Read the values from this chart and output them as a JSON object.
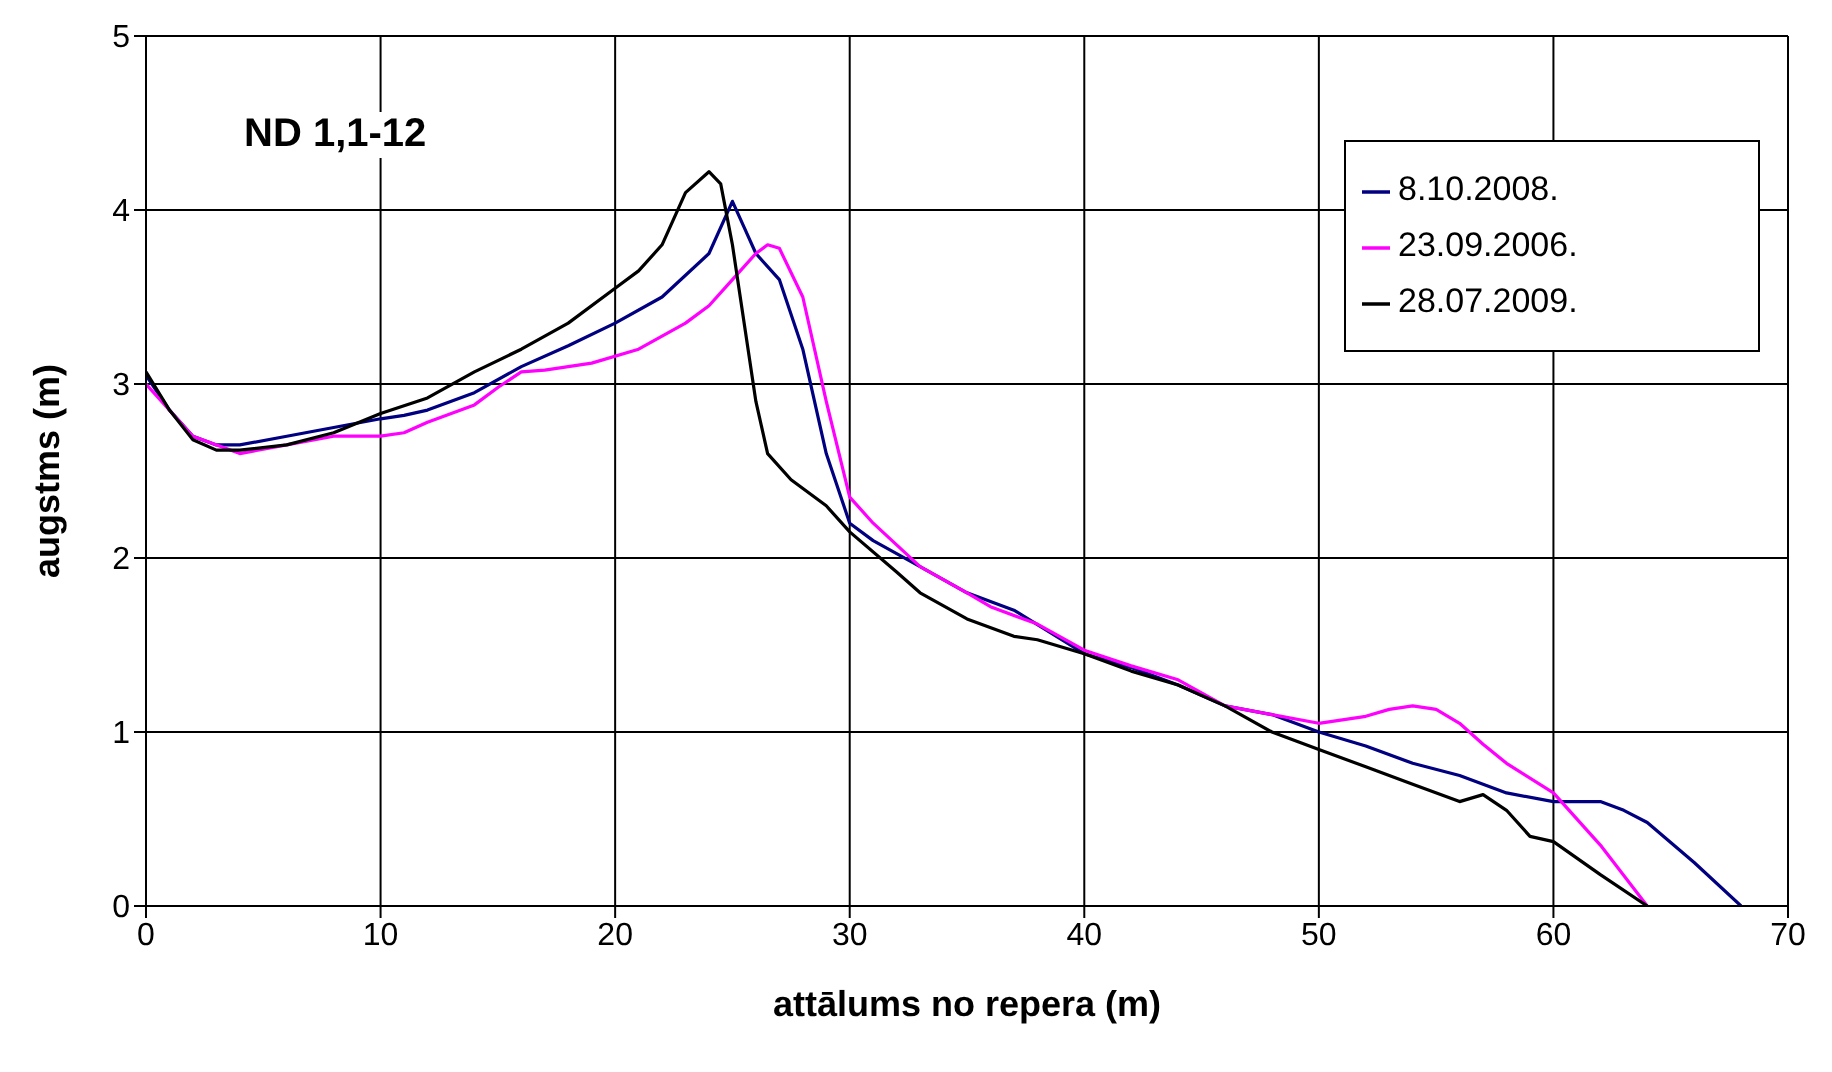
{
  "chart_data": {
    "type": "line",
    "xlabel": "attālums no repera (m)",
    "ylabel": "augstms (m)",
    "annotations": [
      "ND 1,1-12"
    ],
    "xlim": [
      0,
      70
    ],
    "xticks": [
      0,
      10,
      20,
      30,
      40,
      50,
      60,
      70
    ],
    "ylim": [
      0,
      5
    ],
    "yticks": [
      0,
      1,
      2,
      3,
      4,
      5
    ],
    "grid": true,
    "legend": "top right",
    "marker": "none",
    "line_style": "solid",
    "series": [
      {
        "name": "8.10.2008.",
        "color": "#000080",
        "x": [
          0,
          1,
          2,
          3,
          4,
          6,
          8,
          10,
          11,
          12,
          14,
          16,
          18,
          20,
          22,
          24,
          25,
          25.5,
          26,
          27,
          28,
          29,
          30,
          31,
          33,
          35,
          37,
          40,
          42,
          44,
          46,
          48,
          50,
          52,
          54,
          56,
          58,
          60,
          62,
          63,
          64,
          66,
          68
        ],
        "values": [
          3.05,
          2.85,
          2.7,
          2.65,
          2.65,
          2.7,
          2.75,
          2.8,
          2.82,
          2.85,
          2.95,
          3.1,
          3.22,
          3.35,
          3.5,
          3.75,
          4.05,
          3.9,
          3.75,
          3.6,
          3.2,
          2.6,
          2.2,
          2.1,
          1.95,
          1.8,
          1.7,
          1.45,
          1.37,
          1.27,
          1.15,
          1.1,
          1.0,
          0.92,
          0.82,
          0.75,
          0.65,
          0.6,
          0.6,
          0.55,
          0.48,
          0.25,
          0
        ]
      },
      {
        "name": "23.09.2006.",
        "color": "#ff00ff",
        "x": [
          0,
          2,
          4,
          6,
          8,
          10,
          11,
          12,
          14,
          15,
          16,
          17,
          19,
          21,
          23,
          24,
          25,
          26,
          26.5,
          27,
          28,
          29,
          30,
          31,
          33,
          35,
          36,
          38,
          40,
          42,
          44,
          46,
          48,
          50,
          52,
          53,
          54,
          55,
          56,
          57,
          58,
          60,
          62,
          64
        ],
        "values": [
          3.0,
          2.7,
          2.6,
          2.65,
          2.7,
          2.7,
          2.72,
          2.78,
          2.88,
          2.98,
          3.07,
          3.08,
          3.12,
          3.2,
          3.35,
          3.45,
          3.6,
          3.75,
          3.8,
          3.78,
          3.5,
          2.9,
          2.35,
          2.2,
          1.95,
          1.8,
          1.72,
          1.62,
          1.47,
          1.38,
          1.3,
          1.15,
          1.1,
          1.05,
          1.09,
          1.13,
          1.15,
          1.13,
          1.05,
          0.93,
          0.82,
          0.65,
          0.35,
          0
        ]
      },
      {
        "name": "28.07.2009.",
        "color": "#000000",
        "x": [
          0,
          1,
          2,
          3,
          4,
          6,
          8,
          10,
          12,
          14,
          16,
          18,
          20,
          21,
          22,
          23,
          24,
          24.5,
          25,
          26,
          26.5,
          27.5,
          29,
          30,
          32,
          33,
          35,
          37,
          38,
          40,
          42,
          44,
          46,
          48,
          50,
          52,
          54,
          56,
          57,
          58,
          59,
          60,
          62,
          64
        ],
        "values": [
          3.07,
          2.85,
          2.68,
          2.62,
          2.62,
          2.65,
          2.72,
          2.83,
          2.92,
          3.07,
          3.2,
          3.35,
          3.55,
          3.65,
          3.8,
          4.1,
          4.22,
          4.15,
          3.8,
          2.9,
          2.6,
          2.45,
          2.3,
          2.15,
          1.92,
          1.8,
          1.65,
          1.55,
          1.53,
          1.45,
          1.35,
          1.27,
          1.15,
          1.0,
          0.9,
          0.8,
          0.7,
          0.6,
          0.64,
          0.55,
          0.4,
          0.37,
          0.18,
          0
        ]
      }
    ]
  }
}
